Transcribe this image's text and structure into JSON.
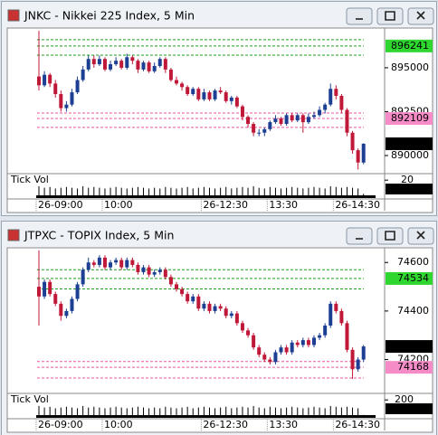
{
  "chart_data": [
    {
      "type": "candlestick",
      "title": "JNKC - Nikkei 225 Index, 5 Min",
      "categories": [
        "26-09:00",
        null,
        null,
        null,
        null,
        null,
        null,
        null,
        null,
        null,
        null,
        null,
        "10:00",
        null,
        null,
        null,
        null,
        null,
        null,
        null,
        null,
        null,
        null,
        null,
        null,
        null,
        null,
        null,
        null,
        null,
        "26-12:30",
        null,
        null,
        null,
        null,
        null,
        null,
        null,
        null,
        null,
        null,
        null,
        "13:30",
        null,
        null,
        null,
        null,
        null,
        null,
        null,
        null,
        null,
        null,
        null,
        "26-14:30",
        null,
        null,
        null,
        null,
        null
      ],
      "open": [
        894500,
        894000,
        894600,
        894100,
        893500,
        892700,
        892900,
        893600,
        894300,
        894900,
        895500,
        895200,
        895500,
        894900,
        895200,
        895400,
        895000,
        895600,
        895400,
        894900,
        895300,
        894800,
        895100,
        895500,
        894900,
        894300,
        894100,
        893900,
        893500,
        893800,
        893200,
        893600,
        893200,
        893700,
        893600,
        893100,
        893300,
        892800,
        892200,
        891800,
        891300,
        891300,
        891500,
        891900,
        892100,
        891800,
        892300,
        892000,
        892300,
        891900,
        892200,
        892300,
        892600,
        892900,
        893800,
        893400,
        892600,
        891300,
        890300,
        889600
      ],
      "high": [
        897100,
        894800,
        894700,
        894300,
        893700,
        893100,
        893800,
        894500,
        895100,
        895700,
        895700,
        895700,
        895600,
        895400,
        895600,
        895500,
        895800,
        895700,
        895500,
        895400,
        895400,
        895300,
        895600,
        895600,
        895000,
        894500,
        894200,
        894000,
        893900,
        893900,
        893800,
        893700,
        893800,
        893900,
        893700,
        893400,
        893400,
        892900,
        892300,
        891900,
        891500,
        891600,
        892000,
        892300,
        892200,
        892400,
        892400,
        892400,
        892400,
        892400,
        892500,
        892800,
        893000,
        894100,
        894000,
        893500,
        892700,
        891400,
        890400,
        890700
      ],
      "low": [
        893700,
        893900,
        893900,
        893300,
        892500,
        892500,
        892800,
        893500,
        894200,
        894800,
        895000,
        895100,
        894800,
        894800,
        895100,
        894900,
        894900,
        895200,
        894700,
        894800,
        894700,
        894700,
        895000,
        894700,
        894200,
        894000,
        893700,
        893400,
        893400,
        893100,
        893100,
        893100,
        893100,
        893500,
        893000,
        892900,
        892700,
        892000,
        891600,
        891100,
        891100,
        891100,
        891400,
        891800,
        891700,
        891700,
        891900,
        891900,
        891300,
        891800,
        892100,
        892200,
        892400,
        892800,
        893200,
        892400,
        891100,
        890100,
        889200,
        889500
      ],
      "close": [
        894000,
        894600,
        894100,
        893500,
        892700,
        892900,
        893600,
        894300,
        894900,
        895500,
        895200,
        895500,
        894900,
        895200,
        895400,
        895000,
        895600,
        895400,
        894900,
        895300,
        894800,
        895100,
        895500,
        894900,
        894300,
        894100,
        893900,
        893500,
        893800,
        893200,
        893600,
        893200,
        893700,
        893600,
        893100,
        893300,
        892800,
        892200,
        891800,
        891300,
        891300,
        891500,
        891900,
        892100,
        891800,
        892300,
        892000,
        892300,
        891900,
        892200,
        892300,
        892600,
        892900,
        893800,
        893400,
        892600,
        891300,
        890300,
        889600,
        890670
      ],
      "up_color": "#1c3f94",
      "down_color": "#c01838",
      "ylim": [
        889070,
        897160
      ],
      "yticks": [
        895000,
        892500,
        890000
      ],
      "reference_lines": [
        {
          "color": "#1aa01a",
          "values": [
            896600,
            896241,
            895720
          ]
        },
        {
          "color": "#e8559e",
          "values": [
            892420,
            892109,
            891600
          ]
        }
      ],
      "volume": {
        "label": "Tick Vol",
        "color": "#000000",
        "ylim": [
          0,
          25
        ],
        "yticks": [
          20
        ],
        "values": [
          12,
          10,
          11,
          9,
          10,
          11,
          10,
          9,
          12,
          10,
          11,
          10,
          9,
          10,
          11,
          10,
          9,
          10,
          11,
          10,
          9,
          10,
          9,
          11,
          10,
          9,
          10,
          11,
          9,
          10,
          11,
          10,
          9,
          10,
          11,
          9,
          10,
          11,
          10,
          12,
          10,
          9,
          11,
          10,
          9,
          10,
          11,
          10,
          9,
          10,
          11,
          10,
          9,
          12,
          11,
          10,
          11,
          10,
          9,
          2
        ]
      }
    },
    {
      "type": "candlestick",
      "title": "JTPXC - TOPIX Index, 5 Min",
      "categories": [
        "26-09:00",
        null,
        null,
        null,
        null,
        null,
        null,
        null,
        null,
        null,
        null,
        null,
        "10:00",
        null,
        null,
        null,
        null,
        null,
        null,
        null,
        null,
        null,
        null,
        null,
        null,
        null,
        null,
        null,
        null,
        null,
        "26-12:30",
        null,
        null,
        null,
        null,
        null,
        null,
        null,
        null,
        null,
        null,
        null,
        "13:30",
        null,
        null,
        null,
        null,
        null,
        null,
        null,
        null,
        null,
        null,
        null,
        "26-14:30",
        null,
        null,
        null,
        null,
        null
      ],
      "open": [
        74500,
        74460,
        74520,
        74470,
        74430,
        74380,
        74400,
        74450,
        74510,
        74570,
        74600,
        74590,
        74620,
        74580,
        74600,
        74610,
        74580,
        74610,
        74590,
        74560,
        74580,
        74550,
        74560,
        74570,
        74540,
        74510,
        74490,
        74470,
        74440,
        74460,
        74410,
        74430,
        74400,
        74420,
        74410,
        74380,
        74390,
        74350,
        74320,
        74300,
        74250,
        74220,
        74200,
        74190,
        74230,
        74250,
        74230,
        74270,
        74260,
        74280,
        74260,
        74290,
        74300,
        74340,
        74430,
        74400,
        74350,
        74240,
        74160,
        74200
      ],
      "high": [
        74650,
        74530,
        74530,
        74480,
        74440,
        74410,
        74460,
        74520,
        74580,
        74620,
        74610,
        74630,
        74630,
        74610,
        74620,
        74620,
        74620,
        74620,
        74600,
        74590,
        74590,
        74570,
        74580,
        74580,
        74550,
        74520,
        74500,
        74480,
        74470,
        74470,
        74440,
        74440,
        74430,
        74430,
        74420,
        74400,
        74400,
        74360,
        74330,
        74310,
        74260,
        74230,
        74210,
        74240,
        74260,
        74260,
        74280,
        74280,
        74290,
        74290,
        74300,
        74310,
        74350,
        74440,
        74440,
        74410,
        74360,
        74250,
        74210,
        74260
      ],
      "low": [
        74340,
        74450,
        74460,
        74420,
        74360,
        74370,
        74390,
        74440,
        74500,
        74560,
        74580,
        74580,
        74570,
        74570,
        74590,
        74570,
        74570,
        74580,
        74550,
        74550,
        74540,
        74540,
        74550,
        74530,
        74500,
        74480,
        74460,
        74430,
        74430,
        74400,
        74400,
        74390,
        74390,
        74400,
        74370,
        74370,
        74340,
        74310,
        74290,
        74240,
        74210,
        74190,
        74180,
        74180,
        74220,
        74220,
        74220,
        74250,
        74250,
        74250,
        74250,
        74280,
        74290,
        74330,
        74390,
        74340,
        74230,
        74120,
        74150,
        74190
      ],
      "close": [
        74460,
        74520,
        74470,
        74430,
        74380,
        74400,
        74450,
        74510,
        74570,
        74600,
        74590,
        74620,
        74580,
        74600,
        74610,
        74580,
        74610,
        74590,
        74560,
        74580,
        74550,
        74560,
        74570,
        74540,
        74510,
        74490,
        74470,
        74440,
        74460,
        74410,
        74430,
        74400,
        74420,
        74410,
        74380,
        74390,
        74350,
        74320,
        74300,
        74250,
        74220,
        74200,
        74190,
        74230,
        74250,
        74230,
        74270,
        74260,
        74280,
        74260,
        74290,
        74300,
        74340,
        74430,
        74400,
        74350,
        74240,
        74160,
        74200,
        74254
      ],
      "up_color": "#1c3f94",
      "down_color": "#c01838",
      "ylim": [
        74068,
        74653
      ],
      "yticks": [
        74600,
        74400,
        74200
      ],
      "reference_lines": [
        {
          "color": "#1aa01a",
          "values": [
            74570,
            74534,
            74491
          ]
        },
        {
          "color": "#e8559e",
          "values": [
            74192,
            74168,
            74124
          ]
        }
      ],
      "volume": {
        "label": "Tick Vol",
        "color": "#000000",
        "ylim": [
          0,
          250
        ],
        "yticks": [
          200
        ],
        "values": [
          120,
          100,
          110,
          90,
          100,
          110,
          100,
          90,
          120,
          100,
          110,
          100,
          90,
          100,
          110,
          100,
          90,
          100,
          110,
          100,
          90,
          100,
          90,
          110,
          100,
          90,
          100,
          110,
          90,
          100,
          110,
          100,
          90,
          100,
          110,
          90,
          100,
          110,
          100,
          120,
          100,
          90,
          110,
          100,
          90,
          100,
          110,
          100,
          90,
          100,
          110,
          100,
          90,
          120,
          110,
          100,
          110,
          100,
          90,
          3
        ]
      }
    }
  ]
}
